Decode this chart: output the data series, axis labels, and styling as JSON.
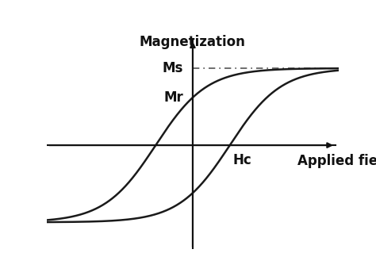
{
  "ylabel": "Magnetization",
  "xlabel": "Applied field",
  "Ms": 1.0,
  "Mr_ratio": 0.62,
  "x_range": [
    -3.8,
    3.8
  ],
  "y_range": [
    -1.35,
    1.45
  ],
  "curve_color": "#1a1a1a",
  "axis_color": "#111111",
  "dashed_color": "#555555",
  "background_color": "#ffffff",
  "label_Ms": "Ms",
  "label_Mr": "Mr",
  "label_Hc": "Hc",
  "label_fontsize": 12,
  "axis_label_fontsize": 12,
  "curve_linewidth": 1.8,
  "axis_linewidth": 1.5,
  "k_steepness": 0.75
}
